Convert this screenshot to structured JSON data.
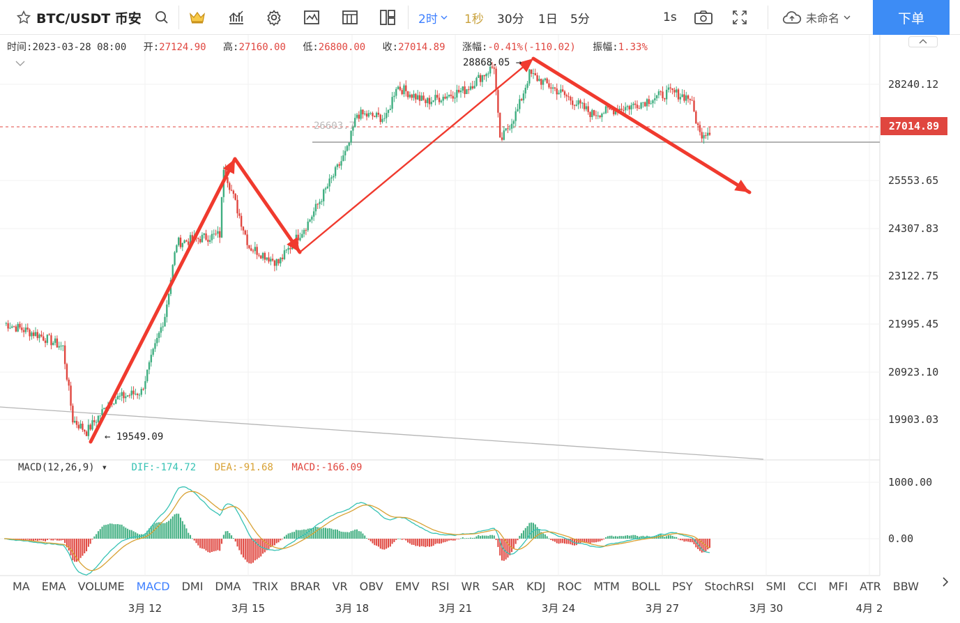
{
  "toolbar": {
    "symbol": "BTC/USDT 币安",
    "intervals": [
      "2时",
      "1秒",
      "30分",
      "1日",
      "5分"
    ],
    "active_interval": "2时",
    "speed": "1s",
    "save_label": "未命名",
    "order_button": "下单"
  },
  "ohlc": {
    "time_label": "时间:",
    "time_value": "2023-03-28 08:00",
    "open_label": "开:",
    "open_value": "27124.90",
    "high_label": "高:",
    "high_value": "27160.00",
    "low_label": "低:",
    "low_value": "26800.00",
    "close_label": "收:",
    "close_value": "27014.89",
    "change_label": "涨幅:",
    "change_value": "-0.41%(-110.02)",
    "amplitude_label": "振幅:",
    "amplitude_value": "1.33%"
  },
  "price_axis": [
    "28240.12",
    "25553.65",
    "24307.83",
    "23122.75",
    "21995.45",
    "20923.10",
    "19903.03"
  ],
  "last_price": "27014.89",
  "annotations": {
    "high_mark": "28868.05",
    "low_mark": "19549.09",
    "hline_value": "26603.7"
  },
  "macd_legend": {
    "name": "MACD(12,26,9)",
    "dif": "DIF:-174.72",
    "dea": "DEA:-91.68",
    "macd": "MACD:-166.09"
  },
  "macd_axis": [
    "1000.00",
    "0.00"
  ],
  "indicators": [
    "MA",
    "EMA",
    "VOLUME",
    "MACD",
    "DMI",
    "DMA",
    "TRIX",
    "BRAR",
    "VR",
    "OBV",
    "EMV",
    "RSI",
    "WR",
    "SAR",
    "KDJ",
    "ROC",
    "MTM",
    "BOLL",
    "PSY",
    "StochRSI",
    "SMI",
    "CCI",
    "MFI",
    "ATR",
    "BBW"
  ],
  "active_indicator": "MACD",
  "x_axis": [
    "3月 12",
    "3月 15",
    "3月 18",
    "3月 21",
    "3月 24",
    "3月 27",
    "3月 30",
    "4月 2"
  ],
  "colors": {
    "up": "#3fae80",
    "down": "#e0463f",
    "accent": "#3d7fff",
    "arrow": "#f03a2e",
    "dif": "#36c2b4",
    "dea": "#d8a133"
  },
  "chart_data": {
    "type": "candlestick",
    "price_range": [
      19000,
      29000
    ],
    "waypoints": [
      [
        0,
        22300
      ],
      [
        18,
        22000
      ],
      [
        30,
        21700
      ],
      [
        35,
        19900
      ],
      [
        42,
        19600
      ],
      [
        55,
        20400
      ],
      [
        70,
        20600
      ],
      [
        82,
        22500
      ],
      [
        88,
        24300
      ],
      [
        110,
        24500
      ],
      [
        112,
        26200
      ],
      [
        125,
        24200
      ],
      [
        140,
        23800
      ],
      [
        155,
        24800
      ],
      [
        175,
        26600
      ],
      [
        180,
        27500
      ],
      [
        195,
        27400
      ],
      [
        200,
        28200
      ],
      [
        215,
        27800
      ],
      [
        235,
        28100
      ],
      [
        250,
        28700
      ],
      [
        253,
        26800
      ],
      [
        262,
        27600
      ],
      [
        268,
        28500
      ],
      [
        285,
        28000
      ],
      [
        300,
        27500
      ],
      [
        320,
        27700
      ],
      [
        340,
        28050
      ],
      [
        350,
        27900
      ],
      [
        355,
        27000
      ],
      [
        360,
        27100
      ]
    ],
    "wave_points": [
      [
        19549,
        0
      ],
      [
        26600,
        1
      ],
      [
        23900,
        2
      ],
      [
        28868,
        3
      ],
      [
        26300,
        4
      ]
    ]
  }
}
